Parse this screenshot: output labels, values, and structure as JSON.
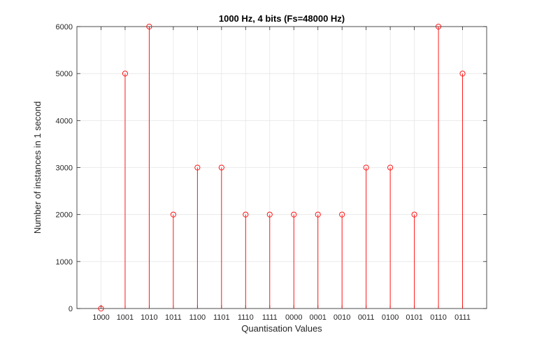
{
  "chart_data": {
    "type": "stem",
    "title": "1000 Hz, 4 bits (Fs=48000 Hz)",
    "xlabel": "Quantisation Values",
    "ylabel": "Number of instances in 1 second",
    "categories": [
      "1000",
      "1001",
      "1010",
      "1011",
      "1100",
      "1101",
      "1110",
      "1111",
      "0000",
      "0001",
      "0010",
      "0011",
      "0100",
      "0101",
      "0110",
      "0111"
    ],
    "values": [
      0,
      5000,
      6000,
      2000,
      3000,
      3000,
      2000,
      2000,
      2000,
      2000,
      2000,
      3000,
      3000,
      2000,
      6000,
      5000
    ],
    "ylim": [
      0,
      6000
    ],
    "yticks": [
      0,
      1000,
      2000,
      3000,
      4000,
      5000,
      6000
    ],
    "x_range": [
      0,
      17
    ],
    "grid": true,
    "color": "#ff0000",
    "marker": "circle"
  }
}
